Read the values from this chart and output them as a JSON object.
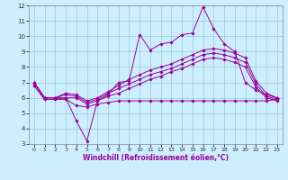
{
  "xlabel": "Windchill (Refroidissement éolien,°C)",
  "xlim": [
    -0.5,
    23.5
  ],
  "ylim": [
    3,
    12
  ],
  "yticks": [
    3,
    4,
    5,
    6,
    7,
    8,
    9,
    10,
    11,
    12
  ],
  "xticks": [
    0,
    1,
    2,
    3,
    4,
    5,
    6,
    7,
    8,
    9,
    10,
    11,
    12,
    13,
    14,
    15,
    16,
    17,
    18,
    19,
    20,
    21,
    22,
    23
  ],
  "bg_color": "#cceeff",
  "grid_color": "#99cccc",
  "line_color": "#990099",
  "lines": [
    [
      7.0,
      6.0,
      6.0,
      6.0,
      4.5,
      3.2,
      5.8,
      6.2,
      7.0,
      7.1,
      10.1,
      9.1,
      9.5,
      9.6,
      10.1,
      10.2,
      11.9,
      10.5,
      9.5,
      9.0,
      7.0,
      6.5,
      6.2,
      6.0
    ],
    [
      7.0,
      6.0,
      6.0,
      6.3,
      6.2,
      5.8,
      6.0,
      6.4,
      6.8,
      7.2,
      7.5,
      7.8,
      8.0,
      8.2,
      8.5,
      8.8,
      9.1,
      9.2,
      9.1,
      8.9,
      8.6,
      7.1,
      6.3,
      6.0
    ],
    [
      7.0,
      6.0,
      6.0,
      6.2,
      6.1,
      5.7,
      5.9,
      6.3,
      6.6,
      6.9,
      7.2,
      7.5,
      7.7,
      7.9,
      8.2,
      8.5,
      8.8,
      8.9,
      8.8,
      8.6,
      8.3,
      6.9,
      6.1,
      5.9
    ],
    [
      6.8,
      5.9,
      5.9,
      6.0,
      6.0,
      5.6,
      5.8,
      6.1,
      6.3,
      6.6,
      6.9,
      7.2,
      7.4,
      7.7,
      7.9,
      8.2,
      8.5,
      8.6,
      8.5,
      8.3,
      8.0,
      6.7,
      6.0,
      5.8
    ],
    [
      6.8,
      5.9,
      5.9,
      5.9,
      5.5,
      5.4,
      5.6,
      5.7,
      5.8,
      5.8,
      5.8,
      5.8,
      5.8,
      5.8,
      5.8,
      5.8,
      5.8,
      5.8,
      5.8,
      5.8,
      5.8,
      5.8,
      5.8,
      5.9
    ]
  ]
}
